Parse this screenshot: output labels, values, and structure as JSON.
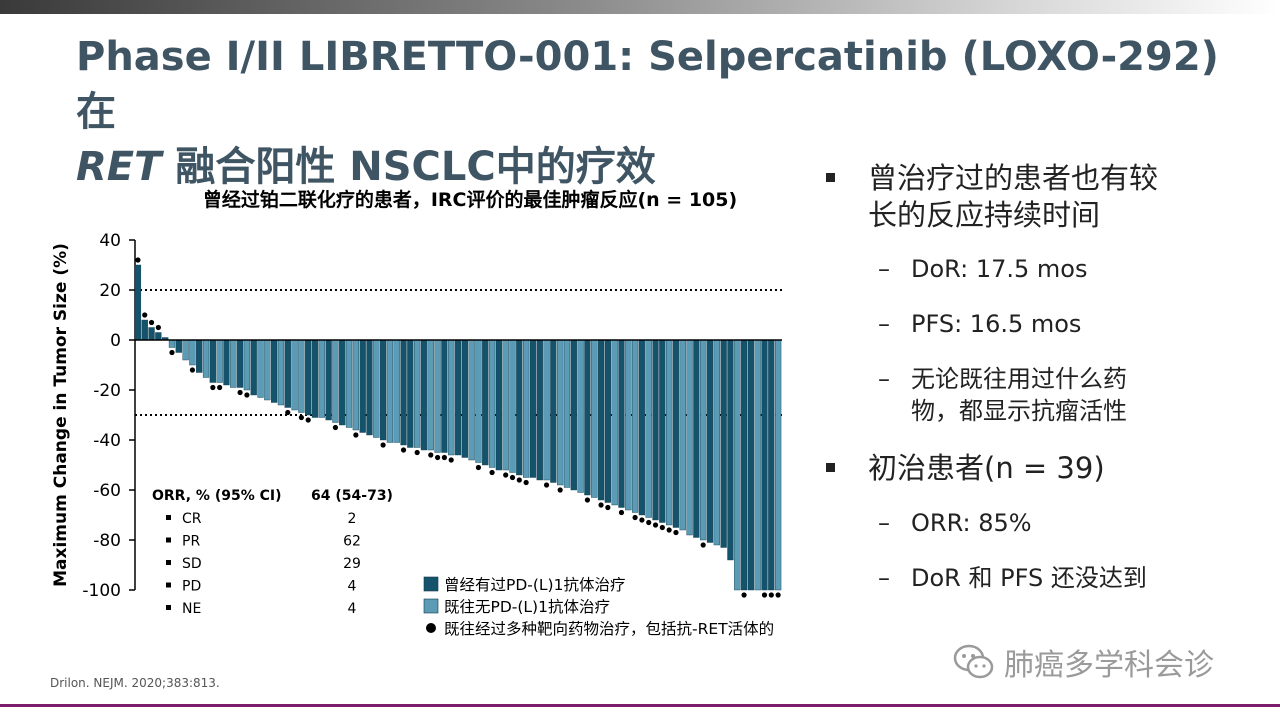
{
  "slide": {
    "title_line1": "Phase I/II LIBRETTO-001: Selpercatinib (LOXO-292) 在",
    "title_line2_italic": "RET",
    "title_line2_rest": " 融合阳性 NSCLC中的疗效",
    "source": "Drilon. NEJM. 2020;383:813.",
    "watermark": "肺癌多学科会诊"
  },
  "bullets": [
    {
      "level": 1,
      "text_lines": [
        "曾治疗过的患者也有较",
        "长的反应持续时间"
      ]
    },
    {
      "level": 2,
      "text_lines": [
        "DoR: 17.5 mos"
      ]
    },
    {
      "level": 2,
      "text_lines": [
        "PFS: 16.5 mos"
      ]
    },
    {
      "level": 2,
      "text_lines": [
        "无论既往用过什么药",
        "物，都显示抗瘤活性"
      ]
    },
    {
      "level": 1,
      "text_lines": [
        "初治患者(n = 39)"
      ]
    },
    {
      "level": 2,
      "text_lines": [
        "ORR: 85%"
      ]
    },
    {
      "level": 2,
      "text_lines": [
        "DoR 和 PFS 还没达到"
      ]
    }
  ],
  "chart_data": {
    "type": "bar",
    "title": "曾经过铂二联化疗的患者，IRC评价的最佳肿瘤反应(n = 105)",
    "ylabel": "Maximum Change in Tumor Size (%)",
    "xlabel": "",
    "ylim": [
      -100,
      40
    ],
    "yticks": [
      40,
      20,
      0,
      -20,
      -40,
      -60,
      -80,
      -100
    ],
    "reference_lines": [
      20,
      -30
    ],
    "colors": {
      "prior_pd1": "#14536b",
      "no_prior_pd1": "#5b9bb5",
      "marker": "#000000"
    },
    "legend": [
      {
        "label": "曾经有过PD-(L)1抗体治疗",
        "marker": "square",
        "color": "#14536b"
      },
      {
        "label": "既往无PD-(L)1抗体治疗",
        "marker": "square",
        "color": "#5b9bb5"
      },
      {
        "label": "既往经过多种靶向药物治疗，包括抗-RET活体的",
        "marker": "dot",
        "color": "#000000"
      }
    ],
    "values": [
      30,
      8,
      5,
      3,
      1,
      -3,
      -5,
      -8,
      -10,
      -13,
      -15,
      -17,
      -17,
      -18,
      -19,
      -19,
      -20,
      -22,
      -23,
      -24,
      -25,
      -26,
      -27,
      -28,
      -29,
      -30,
      -31,
      -31,
      -32,
      -33,
      -34,
      -35,
      -36,
      -37,
      -38,
      -39,
      -40,
      -41,
      -41,
      -42,
      -43,
      -43,
      -44,
      -44,
      -45,
      -45,
      -46,
      -46,
      -47,
      -48,
      -49,
      -50,
      -51,
      -52,
      -52,
      -53,
      -54,
      -55,
      -55,
      -56,
      -56,
      -57,
      -58,
      -59,
      -60,
      -61,
      -62,
      -63,
      -64,
      -65,
      -66,
      -67,
      -68,
      -69,
      -70,
      -71,
      -72,
      -73,
      -74,
      -75,
      -76,
      -78,
      -79,
      -80,
      -81,
      -82,
      -83,
      -88,
      -100,
      -100,
      -100,
      -100,
      -100,
      -100,
      -100
    ],
    "prior_pd1": [
      1,
      1,
      1,
      1,
      1,
      0,
      1,
      0,
      0,
      1,
      0,
      1,
      0,
      1,
      0,
      1,
      0,
      1,
      0,
      0,
      1,
      0,
      1,
      0,
      0,
      1,
      1,
      0,
      1,
      0,
      1,
      0,
      0,
      1,
      1,
      0,
      1,
      0,
      0,
      1,
      1,
      0,
      1,
      0,
      0,
      1,
      0,
      1,
      1,
      0,
      0,
      1,
      0,
      1,
      0,
      0,
      1,
      0,
      1,
      1,
      0,
      1,
      0,
      0,
      1,
      0,
      1,
      0,
      1,
      1,
      0,
      1,
      0,
      0,
      1,
      0,
      1,
      1,
      0,
      1,
      0,
      0,
      1,
      0,
      1,
      0,
      1,
      1,
      0,
      1,
      1,
      0,
      1,
      1,
      0
    ],
    "prior_targeted": [
      1,
      1,
      1,
      1,
      0,
      1,
      0,
      0,
      1,
      0,
      0,
      1,
      1,
      0,
      0,
      1,
      1,
      0,
      0,
      0,
      0,
      0,
      1,
      0,
      1,
      1,
      0,
      0,
      0,
      1,
      0,
      0,
      1,
      0,
      0,
      0,
      1,
      0,
      0,
      1,
      0,
      1,
      0,
      1,
      1,
      1,
      1,
      0,
      0,
      0,
      1,
      0,
      1,
      0,
      1,
      1,
      1,
      1,
      0,
      0,
      1,
      0,
      1,
      0,
      0,
      0,
      1,
      0,
      1,
      1,
      0,
      1,
      0,
      1,
      1,
      1,
      1,
      1,
      1,
      1,
      0,
      0,
      0,
      1,
      0,
      0,
      0,
      0,
      0,
      1,
      0,
      0,
      1,
      1,
      1
    ],
    "orr_table": {
      "header": [
        "ORR, % (95% CI)",
        "64 (54-73)"
      ],
      "rows": [
        {
          "label": "CR",
          "value": "2"
        },
        {
          "label": "PR",
          "value": "62"
        },
        {
          "label": "SD",
          "value": "29"
        },
        {
          "label": "PD",
          "value": "4"
        },
        {
          "label": "NE",
          "value": "4"
        }
      ]
    }
  }
}
